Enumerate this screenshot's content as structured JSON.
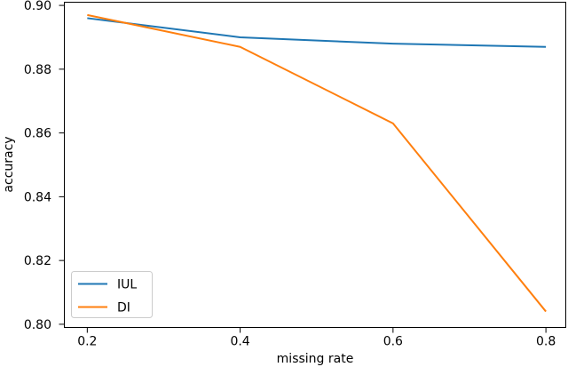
{
  "chart_data": {
    "type": "line",
    "title": "",
    "xlabel": "missing rate",
    "ylabel": "accuracy",
    "x": [
      0.2,
      0.4,
      0.6,
      0.8
    ],
    "series": [
      {
        "name": "IUL",
        "color": "#1f77b4",
        "values": [
          0.896,
          0.89,
          0.888,
          0.887
        ]
      },
      {
        "name": "DI",
        "color": "#ff7f0e",
        "values": [
          0.897,
          0.887,
          0.863,
          0.804
        ]
      }
    ],
    "xticks": [
      0.2,
      0.4,
      0.6,
      0.8
    ],
    "xtick_labels": [
      "0.2",
      "0.4",
      "0.6",
      "0.8"
    ],
    "yticks": [
      0.8,
      0.82,
      0.84,
      0.86,
      0.88,
      0.9
    ],
    "ytick_labels": [
      "0.80",
      "0.82",
      "0.84",
      "0.86",
      "0.88",
      "0.90"
    ],
    "xlim": [
      0.17,
      0.826
    ],
    "ylim": [
      0.799,
      0.901
    ],
    "grid": false,
    "legend": {
      "position": "lower left",
      "entries": [
        "IUL",
        "DI"
      ]
    },
    "background": "#ffffff",
    "axis_color": "#000000",
    "legend_border_color": "#cccccc"
  }
}
